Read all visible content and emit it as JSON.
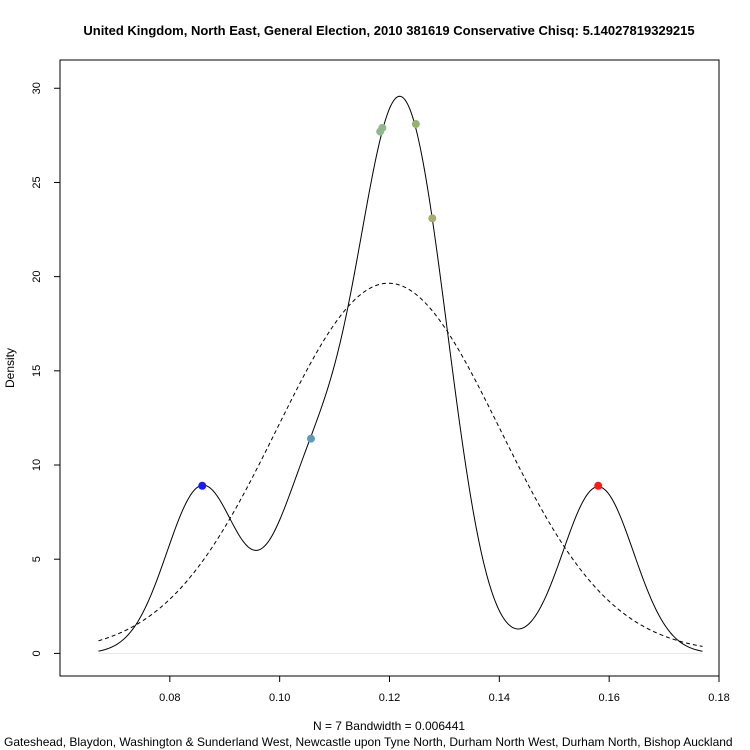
{
  "chart_data": {
    "type": "line",
    "title": "United Kingdom, North East, General Election, 2010 381619 Conservative Chisq: 5.14027819329215",
    "xlabel": "N = 7   Bandwidth = 0.006441",
    "subtitle": "Gateshead, Blaydon, Washington & Sunderland West, Newcastle upon Tyne North, Durham North West, Durham North, Bishop Auckland",
    "ylabel": "Density",
    "xlim": [
      0.06,
      0.18
    ],
    "ylim": [
      -1.2,
      31.5
    ],
    "xticks": [
      "0.08",
      "0.10",
      "0.12",
      "0.14",
      "0.16",
      "0.18"
    ],
    "yticks": [
      "0",
      "5",
      "10",
      "15",
      "20",
      "25",
      "30"
    ],
    "bandwidth": 0.006441,
    "normal_mean": 0.1198,
    "normal_sd": 0.0203,
    "kde_range": [
      0.067,
      0.177
    ],
    "series": [],
    "points": [
      {
        "x": 0.0859,
        "y": 8.9,
        "color": "#1a1aff"
      },
      {
        "x": 0.1057,
        "y": 11.4,
        "color": "#5b9abf"
      },
      {
        "x": 0.1183,
        "y": 27.7,
        "color": "#8fb88c"
      },
      {
        "x": 0.1187,
        "y": 27.9,
        "color": "#8fb88c"
      },
      {
        "x": 0.1248,
        "y": 28.1,
        "color": "#93b46f"
      },
      {
        "x": 0.1278,
        "y": 23.1,
        "color": "#a8ad6c"
      },
      {
        "x": 0.158,
        "y": 8.9,
        "color": "#ff1a1a"
      }
    ],
    "grid": false,
    "legend": "none"
  }
}
